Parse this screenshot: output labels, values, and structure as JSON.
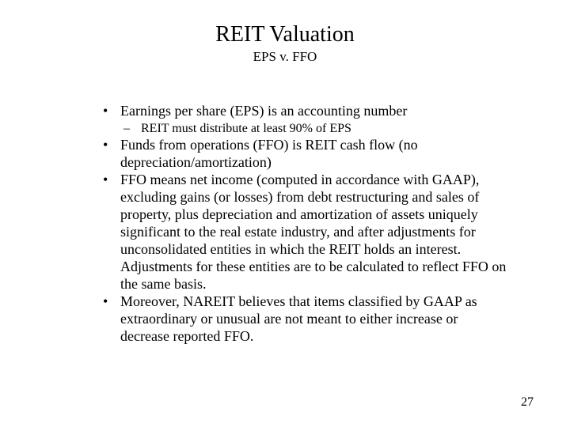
{
  "title": "REIT Valuation",
  "subtitle": "EPS v. FFO",
  "bullets": [
    {
      "text": "Earnings per share (EPS) is an accounting number",
      "sub": [
        "REIT must distribute at least 90% of EPS"
      ]
    },
    {
      "text": "Funds from operations (FFO) is REIT cash flow (no depreciation/amortization)"
    },
    {
      "text": "FFO means net income (computed in accordance with GAAP), excluding gains (or losses) from debt restructuring and sales of property, plus depreciation and amortization of assets uniquely significant to the real estate industry, and after adjustments for unconsolidated entities in which the REIT holds an interest.  Adjustments for these entities are to be calculated to reflect FFO on the same basis."
    },
    {
      "text": "Moreover, NAREIT believes that items classified by GAAP as extraordinary or unusual are not meant to either increase or decrease reported FFO."
    }
  ],
  "page_number": "27",
  "colors": {
    "background": "#ffffff",
    "text": "#000000"
  },
  "fonts": {
    "family": "Times New Roman",
    "title_size": 28,
    "subtitle_size": 17,
    "body_size": 18,
    "sub_size": 16,
    "pagenum_size": 16
  }
}
